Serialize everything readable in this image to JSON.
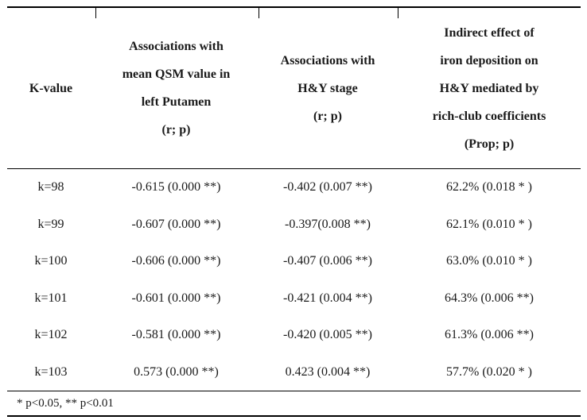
{
  "table": {
    "header": {
      "col1": {
        "lines": [
          "K-value"
        ]
      },
      "col2": {
        "lines": [
          "Associations with",
          "mean QSM value in",
          "left Putamen",
          "(r; p)"
        ]
      },
      "col3": {
        "lines": [
          "Associations with",
          "H&Y stage",
          "(r; p)"
        ]
      },
      "col4": {
        "lines": [
          "Indirect effect of",
          "iron deposition on",
          "H&Y mediated by",
          "rich-club coefficients",
          "(Prop; p)"
        ]
      }
    },
    "rows": [
      {
        "k": "k=98",
        "qsm": "-0.615 (0.000 **)",
        "hy": "-0.402 (0.007 **)",
        "indirect": "62.2% (0.018 * )"
      },
      {
        "k": "k=99",
        "qsm": "-0.607 (0.000 **)",
        "hy": "-0.397(0.008 **)",
        "indirect": "62.1% (0.010 * )"
      },
      {
        "k": "k=100",
        "qsm": "-0.606 (0.000 **)",
        "hy": "-0.407 (0.006 **)",
        "indirect": "63.0% (0.010 * )"
      },
      {
        "k": "k=101",
        "qsm": "-0.601 (0.000 **)",
        "hy": "-0.421 (0.004 **)",
        "indirect": "64.3% (0.006 **)"
      },
      {
        "k": "k=102",
        "qsm": "-0.581 (0.000 **)",
        "hy": "-0.420 (0.005 **)",
        "indirect": "61.3% (0.006 **)"
      },
      {
        "k": "k=103",
        "qsm": "0.573 (0.000 **)",
        "hy": "0.423 (0.004 **)",
        "indirect": "57.7% (0.020 * )"
      }
    ],
    "footnote": "* p<0.05, ** p<0.01"
  }
}
